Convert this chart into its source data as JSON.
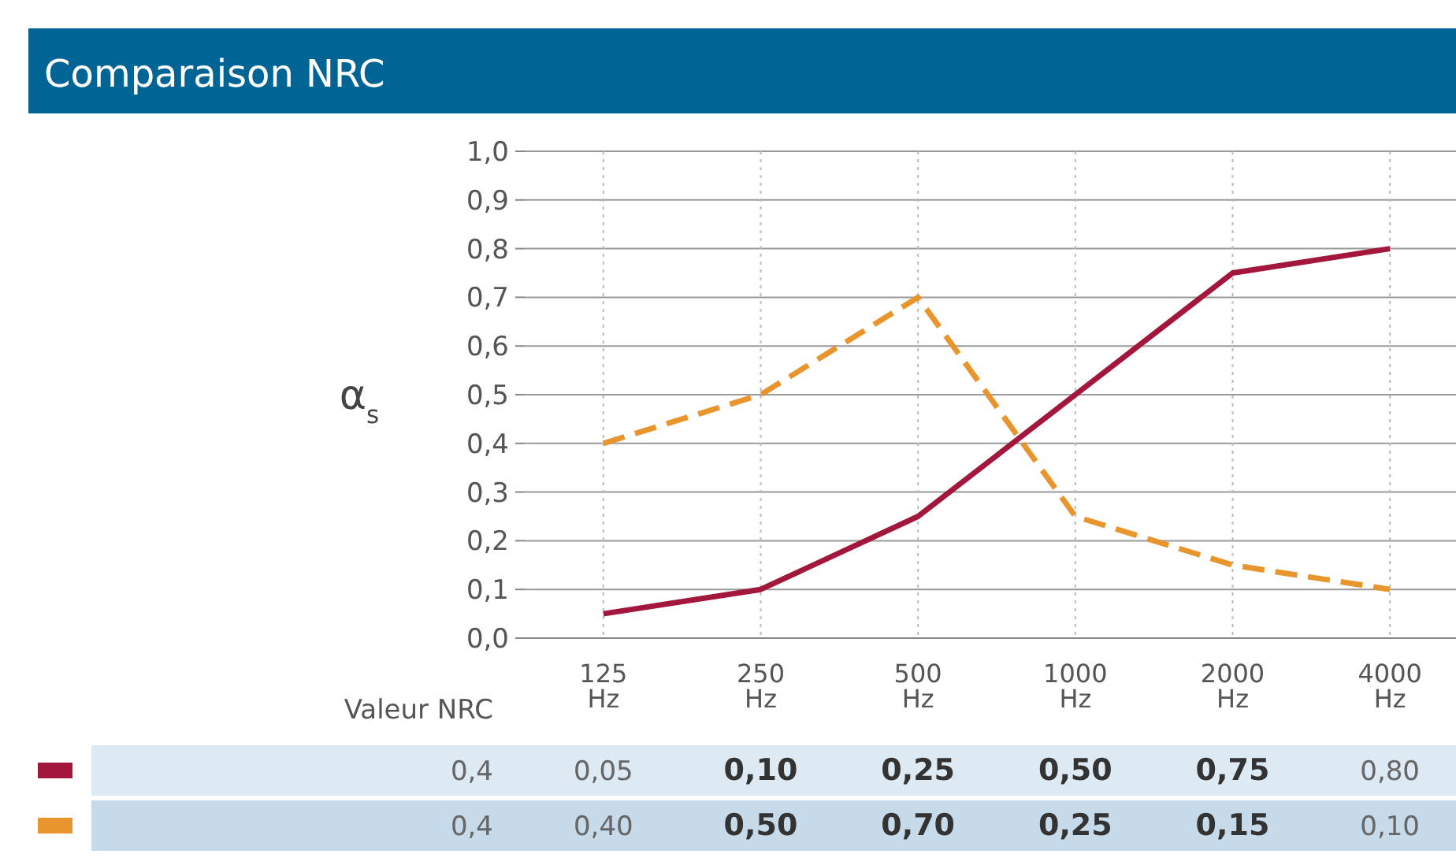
{
  "chart_data": {
    "type": "line",
    "title": "Comparaison NRC",
    "ylabel": "α$_{s}$",
    "categories": [
      "125 Hz",
      "250 Hz",
      "500 Hz",
      "1000 Hz",
      "2000 Hz",
      "4000 Hz"
    ],
    "series": [
      {
        "color": "#a3173c",
        "line_style": "solid",
        "values": [
          0.05,
          0.1,
          0.25,
          0.5,
          0.75,
          0.8
        ],
        "value_labels": [
          "0,05",
          "0,10",
          "0,25",
          "0,50",
          "0,75",
          "0,80"
        ]
      },
      {
        "color": "#e8952e",
        "line_style": "dashed",
        "values": [
          0.4,
          0.5,
          0.7,
          0.25,
          0.15,
          0.1
        ],
        "value_labels": [
          "0,40",
          "0,50",
          "0,70",
          "0,25",
          "0,15",
          "0,10"
        ]
      }
    ],
    "ylim": [
      0,
      1
    ],
    "yticks": [
      {
        "value": 0,
        "label": "0,0"
      },
      {
        "value": 0.1,
        "label": "0,1"
      },
      {
        "value": 0.2,
        "label": "0,2"
      },
      {
        "value": 0.3,
        "label": "0,3"
      },
      {
        "value": 0.4,
        "label": "0,4"
      },
      {
        "value": 0.5,
        "label": "0,5"
      },
      {
        "value": 0.6,
        "label": "0,6"
      },
      {
        "value": 0.7,
        "label": "0,7"
      },
      {
        "value": 0.8,
        "label": "0,8"
      },
      {
        "value": 0.9,
        "label": "0,9"
      },
      {
        "value": 1,
        "label": "1,0"
      }
    ],
    "grid": true,
    "marker": "none",
    "annotations": [
      "Valeur NRC",
      "0,4",
      "0,4"
    ]
  }
}
